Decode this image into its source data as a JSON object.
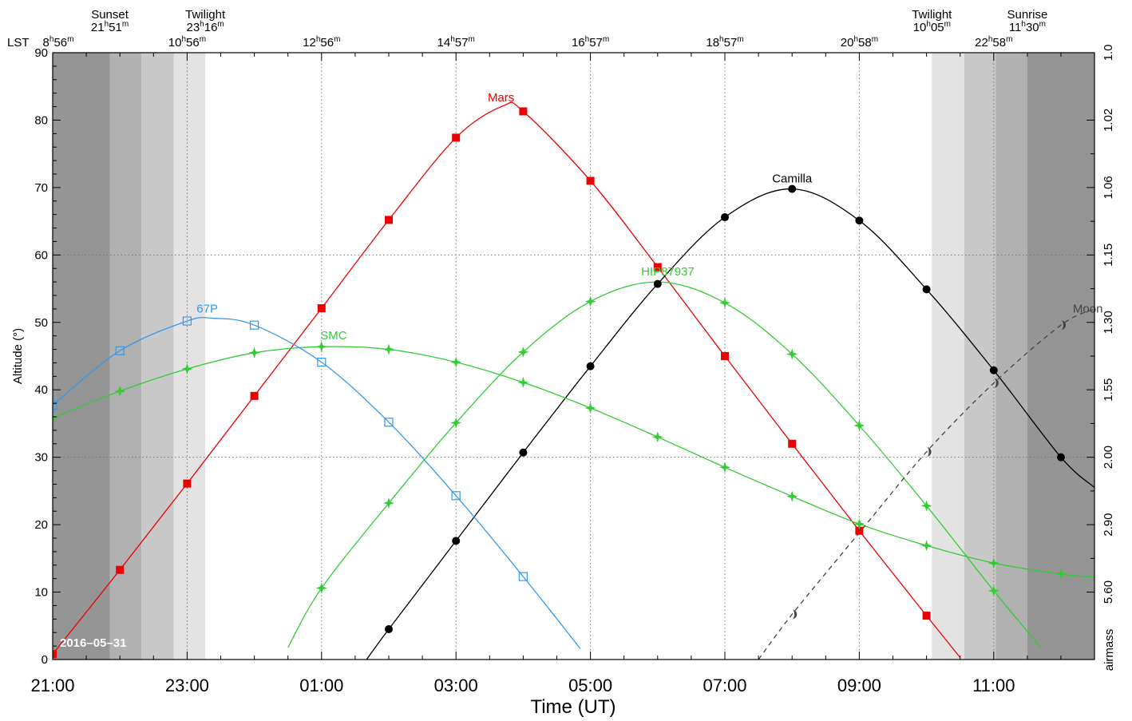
{
  "chart_data": {
    "type": "line",
    "xlabel": "Time (UT)",
    "ylabel": "Altitude (°)",
    "y2label": "airmass",
    "ylim": [
      0,
      90
    ],
    "xlim_hours": [
      0,
      15.5
    ],
    "x_ticks": [
      {
        "h": 0,
        "label": "21:00"
      },
      {
        "h": 2,
        "label": "23:00"
      },
      {
        "h": 4,
        "label": "01:00"
      },
      {
        "h": 6,
        "label": "03:00"
      },
      {
        "h": 8,
        "label": "05:00"
      },
      {
        "h": 10,
        "label": "07:00"
      },
      {
        "h": 12,
        "label": "09:00"
      },
      {
        "h": 14,
        "label": "11:00"
      }
    ],
    "y_ticks": [
      0,
      10,
      20,
      30,
      40,
      50,
      60,
      70,
      80,
      90
    ],
    "airmass_ticks": [
      {
        "alt": 90,
        "label": "1.0"
      },
      {
        "alt": 80,
        "label": "1.02"
      },
      {
        "alt": 70,
        "label": "1.06"
      },
      {
        "alt": 60,
        "label": "1.15"
      },
      {
        "alt": 50,
        "label": "1.30"
      },
      {
        "alt": 40,
        "label": "1.55"
      },
      {
        "alt": 30,
        "label": "2.00"
      },
      {
        "alt": 20,
        "label": "2.90"
      },
      {
        "alt": 10,
        "label": "5.60"
      }
    ],
    "lst_prefix": "LST",
    "lst_ticks": [
      {
        "h": 0,
        "hh": "8",
        "mm": "56"
      },
      {
        "h": 2,
        "hh": "10",
        "mm": "56"
      },
      {
        "h": 4,
        "hh": "12",
        "mm": "56"
      },
      {
        "h": 6,
        "hh": "14",
        "mm": "57"
      },
      {
        "h": 8,
        "hh": "16",
        "mm": "57"
      },
      {
        "h": 10,
        "hh": "18",
        "mm": "57"
      },
      {
        "h": 12,
        "hh": "20",
        "mm": "58"
      },
      {
        "h": 14,
        "hh": "22",
        "mm": "58"
      }
    ],
    "sun_events": [
      {
        "h": 0.85,
        "name": "Sunset",
        "hh": "21",
        "mm": "51"
      },
      {
        "h": 2.27,
        "name": "Twilight",
        "hh": "23",
        "mm": "16"
      },
      {
        "h": 13.08,
        "name": "Twilight",
        "hh": "10",
        "mm": "05"
      },
      {
        "h": 14.5,
        "name": "Sunrise",
        "hh": "11",
        "mm": "30"
      }
    ],
    "shading": [
      {
        "from": 0,
        "to": 0.85,
        "color": "#959595"
      },
      {
        "from": 0.85,
        "to": 1.32,
        "color": "#b1b1b1"
      },
      {
        "from": 1.32,
        "to": 1.8,
        "color": "#c8c8c8"
      },
      {
        "from": 1.8,
        "to": 2.27,
        "color": "#e3e3e3"
      },
      {
        "from": 13.08,
        "to": 13.56,
        "color": "#e3e3e3"
      },
      {
        "from": 13.56,
        "to": 14.03,
        "color": "#c8c8c8"
      },
      {
        "from": 14.03,
        "to": 14.5,
        "color": "#b1b1b1"
      },
      {
        "from": 14.5,
        "to": 15.5,
        "color": "#959595"
      }
    ],
    "date_label": "2016–05–31",
    "series": [
      {
        "name": "Mars",
        "color": "#ee0000",
        "marker": "square-filled",
        "dash": false,
        "label_at": {
          "h": 6.67,
          "alt": 82.3
        },
        "curve": [
          [
            0,
            0.8
          ],
          [
            1,
            13.3
          ],
          [
            2,
            26.1
          ],
          [
            3,
            39.1
          ],
          [
            4,
            52.1
          ],
          [
            5,
            65.2
          ],
          [
            6,
            77.4
          ],
          [
            6.7,
            82.1
          ],
          [
            7,
            81.3
          ],
          [
            8,
            71.0
          ],
          [
            9,
            58.2
          ],
          [
            10,
            45.0
          ],
          [
            11,
            32.0
          ],
          [
            12,
            19.1
          ],
          [
            13,
            6.5
          ],
          [
            13.5,
            0.3
          ]
        ],
        "markers": [
          [
            0,
            0.8
          ],
          [
            1,
            13.3
          ],
          [
            2,
            26.1
          ],
          [
            3,
            39.1
          ],
          [
            4,
            52.1
          ],
          [
            5,
            65.2
          ],
          [
            6,
            77.4
          ],
          [
            7,
            81.3
          ],
          [
            8,
            71.0
          ],
          [
            9,
            58.2
          ],
          [
            10,
            45.0
          ],
          [
            11,
            32.0
          ],
          [
            12,
            19.1
          ],
          [
            13,
            6.5
          ]
        ]
      },
      {
        "name": "Camilla",
        "color": "#000000",
        "marker": "circle-filled",
        "dash": false,
        "label_at": {
          "h": 11.0,
          "alt": 70.3
        },
        "curve": [
          [
            4.67,
            0
          ],
          [
            5,
            4.5
          ],
          [
            6,
            17.6
          ],
          [
            7,
            30.7
          ],
          [
            8,
            43.5
          ],
          [
            9,
            55.7
          ],
          [
            10,
            65.6
          ],
          [
            11,
            69.8
          ],
          [
            12,
            65.1
          ],
          [
            13,
            54.9
          ],
          [
            14,
            42.9
          ],
          [
            15,
            30.0
          ],
          [
            15.5,
            25.5
          ]
        ],
        "markers": [
          [
            5,
            4.5
          ],
          [
            6,
            17.6
          ],
          [
            7,
            30.7
          ],
          [
            8,
            43.5
          ],
          [
            9,
            55.7
          ],
          [
            10,
            65.6
          ],
          [
            11,
            69.8
          ],
          [
            12,
            65.1
          ],
          [
            13,
            54.9
          ],
          [
            14,
            42.9
          ],
          [
            15,
            30.0
          ]
        ]
      },
      {
        "name": "HIP87937",
        "color": "#33cc33",
        "marker": "star4-filled",
        "dash": false,
        "label_at": {
          "h": 9.15,
          "alt": 56.5
        },
        "curve": [
          [
            3.5,
            1.8
          ],
          [
            4,
            10.6
          ],
          [
            5,
            23.2
          ],
          [
            6,
            35.1
          ],
          [
            7,
            45.6
          ],
          [
            8,
            53.1
          ],
          [
            9,
            56.0
          ],
          [
            10,
            52.9
          ],
          [
            11,
            45.3
          ],
          [
            12,
            34.7
          ],
          [
            13,
            22.8
          ],
          [
            14,
            10.2
          ],
          [
            14.7,
            1.8
          ]
        ],
        "markers": [
          [
            4,
            10.6
          ],
          [
            5,
            23.2
          ],
          [
            6,
            35.1
          ],
          [
            7,
            45.6
          ],
          [
            8,
            53.1
          ],
          [
            10,
            52.9
          ],
          [
            11,
            45.3
          ],
          [
            12,
            34.7
          ],
          [
            13,
            22.8
          ],
          [
            14,
            10.2
          ]
        ]
      },
      {
        "name": "SMC",
        "color": "#33cc33",
        "marker": "star4-filled",
        "dash": false,
        "label_at": {
          "h": 4.18,
          "alt": 47.0
        },
        "curve": [
          [
            0,
            35.8
          ],
          [
            1,
            39.8
          ],
          [
            2,
            43.1
          ],
          [
            3,
            45.5
          ],
          [
            4,
            46.4
          ],
          [
            5,
            46.0
          ],
          [
            6,
            44.1
          ],
          [
            7,
            41.1
          ],
          [
            8,
            37.3
          ],
          [
            9,
            33.0
          ],
          [
            10,
            28.5
          ],
          [
            11,
            24.2
          ],
          [
            12,
            20.1
          ],
          [
            13,
            16.9
          ],
          [
            14,
            14.3
          ],
          [
            15,
            12.7
          ],
          [
            15.5,
            12.2
          ]
        ],
        "markers": [
          [
            0,
            35.8
          ],
          [
            1,
            39.8
          ],
          [
            2,
            43.1
          ],
          [
            3,
            45.5
          ],
          [
            4,
            46.4
          ],
          [
            5,
            46.0
          ],
          [
            6,
            44.1
          ],
          [
            7,
            41.1
          ],
          [
            8,
            37.3
          ],
          [
            9,
            33.0
          ],
          [
            10,
            28.5
          ],
          [
            11,
            24.2
          ],
          [
            12,
            20.1
          ],
          [
            13,
            16.9
          ],
          [
            14,
            14.3
          ],
          [
            15,
            12.7
          ]
        ]
      },
      {
        "name": "67P",
        "color": "#3399ee",
        "marker": "square-open",
        "dash": false,
        "label_at": {
          "h": 2.3,
          "alt": 51.0
        },
        "curve": [
          [
            0,
            37.7
          ],
          [
            1,
            45.8
          ],
          [
            2,
            50.2
          ],
          [
            2.4,
            50.6
          ],
          [
            3,
            49.6
          ],
          [
            4,
            44.1
          ],
          [
            5,
            35.2
          ],
          [
            6,
            24.3
          ],
          [
            7,
            12.3
          ],
          [
            7.85,
            1.6
          ]
        ],
        "markers": [
          [
            0,
            37.7
          ],
          [
            1,
            45.8
          ],
          [
            2,
            50.2
          ],
          [
            3,
            49.6
          ],
          [
            4,
            44.1
          ],
          [
            5,
            35.2
          ],
          [
            6,
            24.3
          ],
          [
            7,
            12.3
          ]
        ]
      },
      {
        "name": "Moon",
        "color": "#444444",
        "marker": "moon",
        "dash": true,
        "label_at": {
          "h": 15.4,
          "alt": 51.0
        },
        "curve": [
          [
            10.5,
            0
          ],
          [
            11,
            6.7
          ],
          [
            12,
            18.8
          ],
          [
            13,
            30.8
          ],
          [
            14,
            41.0
          ],
          [
            15,
            49.6
          ],
          [
            15.5,
            52.0
          ]
        ],
        "markers": [
          [
            11,
            6.7
          ],
          [
            13,
            30.8
          ],
          [
            14,
            41.0
          ],
          [
            15,
            49.6
          ]
        ]
      }
    ]
  }
}
